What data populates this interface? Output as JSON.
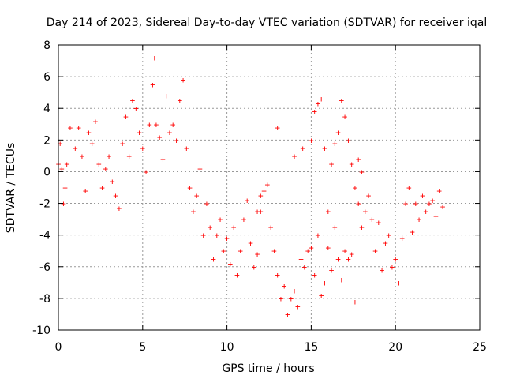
{
  "chart_data": {
    "type": "scatter",
    "title": "Day 214 of 2023, Sidereal Day-to-day VTEC variation (SDTVAR) for receiver iqal",
    "xlabel": "GPS time / hours",
    "ylabel": "SDTVAR / TECUs",
    "xlim": [
      0,
      25
    ],
    "ylim": [
      -10,
      8
    ],
    "xticks": [
      "0",
      "5",
      "10",
      "15",
      "20",
      "25"
    ],
    "yticks": [
      "-10",
      "-8",
      "-6",
      "-4",
      "-2",
      "0",
      "2",
      "4",
      "6",
      "8"
    ],
    "grid": true,
    "marker": "+",
    "marker_color": "#ff0000",
    "series": [
      {
        "name": "SDTVAR",
        "points": [
          [
            0.0,
            0.5
          ],
          [
            0.1,
            1.8
          ],
          [
            0.2,
            0.2
          ],
          [
            0.3,
            -2.0
          ],
          [
            0.4,
            -1.0
          ],
          [
            0.5,
            0.5
          ],
          [
            0.7,
            2.8
          ],
          [
            1.0,
            1.5
          ],
          [
            1.2,
            2.8
          ],
          [
            1.4,
            1.0
          ],
          [
            1.6,
            -1.2
          ],
          [
            1.8,
            2.5
          ],
          [
            2.0,
            1.8
          ],
          [
            2.2,
            3.2
          ],
          [
            2.4,
            0.5
          ],
          [
            2.6,
            -1.0
          ],
          [
            2.8,
            0.2
          ],
          [
            3.0,
            1.0
          ],
          [
            3.2,
            -0.6
          ],
          [
            3.4,
            -1.5
          ],
          [
            3.6,
            -2.3
          ],
          [
            3.8,
            1.8
          ],
          [
            4.0,
            3.5
          ],
          [
            4.2,
            1.0
          ],
          [
            4.4,
            4.5
          ],
          [
            4.6,
            4.0
          ],
          [
            4.8,
            2.5
          ],
          [
            5.0,
            1.5
          ],
          [
            5.2,
            0.0
          ],
          [
            5.4,
            3.0
          ],
          [
            5.6,
            5.5
          ],
          [
            5.7,
            7.2
          ],
          [
            5.8,
            3.0
          ],
          [
            6.0,
            2.2
          ],
          [
            6.2,
            0.8
          ],
          [
            6.4,
            4.8
          ],
          [
            6.6,
            2.5
          ],
          [
            6.8,
            3.0
          ],
          [
            7.0,
            2.0
          ],
          [
            7.2,
            4.5
          ],
          [
            7.4,
            5.8
          ],
          [
            7.6,
            1.5
          ],
          [
            7.8,
            -1.0
          ],
          [
            8.0,
            -2.5
          ],
          [
            8.2,
            -1.5
          ],
          [
            8.4,
            0.2
          ],
          [
            8.6,
            -4.0
          ],
          [
            8.8,
            -2.0
          ],
          [
            9.0,
            -3.5
          ],
          [
            9.2,
            -5.5
          ],
          [
            9.4,
            -4.0
          ],
          [
            9.6,
            -3.0
          ],
          [
            9.8,
            -5.0
          ],
          [
            10.0,
            -4.2
          ],
          [
            10.2,
            -5.8
          ],
          [
            10.4,
            -3.5
          ],
          [
            10.6,
            -6.5
          ],
          [
            10.8,
            -5.0
          ],
          [
            11.0,
            -3.0
          ],
          [
            11.2,
            -1.8
          ],
          [
            11.4,
            -4.5
          ],
          [
            11.6,
            -6.0
          ],
          [
            11.8,
            -5.2
          ],
          [
            12.0,
            -2.5
          ],
          [
            12.2,
            -1.2
          ],
          [
            12.4,
            -0.8
          ],
          [
            12.6,
            -3.5
          ],
          [
            12.8,
            -5.0
          ],
          [
            13.0,
            -6.5
          ],
          [
            13.2,
            -8.0
          ],
          [
            13.4,
            -7.2
          ],
          [
            13.6,
            -9.0
          ],
          [
            13.8,
            -8.0
          ],
          [
            14.0,
            -7.5
          ],
          [
            14.2,
            -8.5
          ],
          [
            14.4,
            -5.5
          ],
          [
            14.6,
            -6.0
          ],
          [
            14.8,
            -5.0
          ],
          [
            15.0,
            -4.8
          ],
          [
            15.2,
            -6.5
          ],
          [
            15.4,
            -4.0
          ],
          [
            15.6,
            -7.8
          ],
          [
            15.8,
            -7.0
          ],
          [
            16.0,
            -4.8
          ],
          [
            16.2,
            -6.2
          ],
          [
            16.4,
            -3.5
          ],
          [
            16.6,
            -5.5
          ],
          [
            16.8,
            -6.8
          ],
          [
            17.0,
            -5.0
          ],
          [
            17.2,
            -5.5
          ],
          [
            17.4,
            -5.2
          ],
          [
            17.6,
            -8.2
          ],
          [
            17.8,
            -2.0
          ],
          [
            18.0,
            0.0
          ],
          [
            18.2,
            -2.5
          ],
          [
            18.4,
            -1.5
          ],
          [
            18.6,
            -3.0
          ],
          [
            18.8,
            -5.0
          ],
          [
            19.0,
            -3.2
          ],
          [
            19.2,
            -6.2
          ],
          [
            19.4,
            -4.5
          ],
          [
            19.6,
            -4.0
          ],
          [
            19.8,
            -6.0
          ],
          [
            20.0,
            -5.5
          ],
          [
            20.2,
            -7.0
          ],
          [
            20.4,
            -4.2
          ],
          [
            20.6,
            -2.0
          ],
          [
            20.8,
            -1.0
          ],
          [
            21.0,
            -3.8
          ],
          [
            21.2,
            -2.0
          ],
          [
            21.4,
            -3.0
          ],
          [
            21.6,
            -1.5
          ],
          [
            21.8,
            -2.5
          ],
          [
            22.0,
            -2.0
          ],
          [
            22.2,
            -1.8
          ],
          [
            22.4,
            -2.8
          ],
          [
            22.6,
            -1.2
          ],
          [
            22.8,
            -2.2
          ],
          [
            14.0,
            1.0
          ],
          [
            14.5,
            1.5
          ],
          [
            15.0,
            2.0
          ],
          [
            15.2,
            3.8
          ],
          [
            15.4,
            4.3
          ],
          [
            15.6,
            4.6
          ],
          [
            15.8,
            1.5
          ],
          [
            16.0,
            -2.5
          ],
          [
            16.2,
            0.5
          ],
          [
            16.4,
            1.8
          ],
          [
            16.6,
            2.5
          ],
          [
            16.8,
            4.5
          ],
          [
            17.0,
            3.5
          ],
          [
            17.2,
            2.0
          ],
          [
            17.4,
            0.5
          ],
          [
            17.6,
            -1.0
          ],
          [
            17.8,
            0.8
          ],
          [
            18.0,
            -3.5
          ],
          [
            13.0,
            2.8
          ],
          [
            12.0,
            -1.5
          ],
          [
            11.8,
            -2.5
          ]
        ]
      }
    ]
  }
}
